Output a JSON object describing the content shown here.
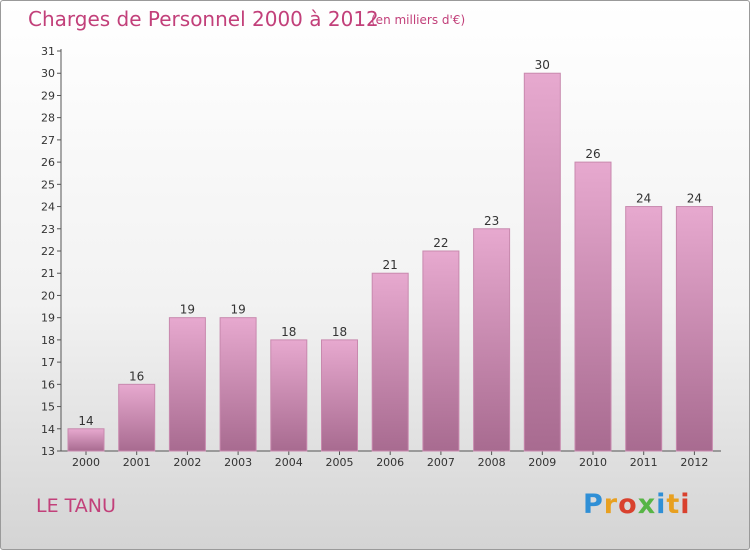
{
  "header": {
    "title": "Charges de Personnel 2000 à 2012",
    "unit": "(en milliers d'€)"
  },
  "footer": {
    "commune": "LE TANU",
    "logo_text": "Proxiti"
  },
  "colors": {
    "title": "#c2407a",
    "bar_top": "#e7a9cf",
    "bar_bottom": "#a86b90"
  },
  "chart_data": {
    "type": "bar",
    "title": "Charges de Personnel 2000 à 2012",
    "subtitle": "(en milliers d'€)",
    "categories": [
      "2000",
      "2001",
      "2002",
      "2003",
      "2004",
      "2005",
      "2006",
      "2007",
      "2008",
      "2009",
      "2010",
      "2011",
      "2012"
    ],
    "values": [
      14,
      16,
      19,
      19,
      18,
      18,
      21,
      22,
      23,
      30,
      26,
      24,
      24
    ],
    "ylim": [
      13,
      31
    ],
    "yticks": [
      13,
      14,
      15,
      16,
      17,
      18,
      19,
      20,
      21,
      22,
      23,
      24,
      25,
      26,
      27,
      28,
      29,
      30,
      31
    ],
    "grid": false,
    "data_labels": true
  }
}
